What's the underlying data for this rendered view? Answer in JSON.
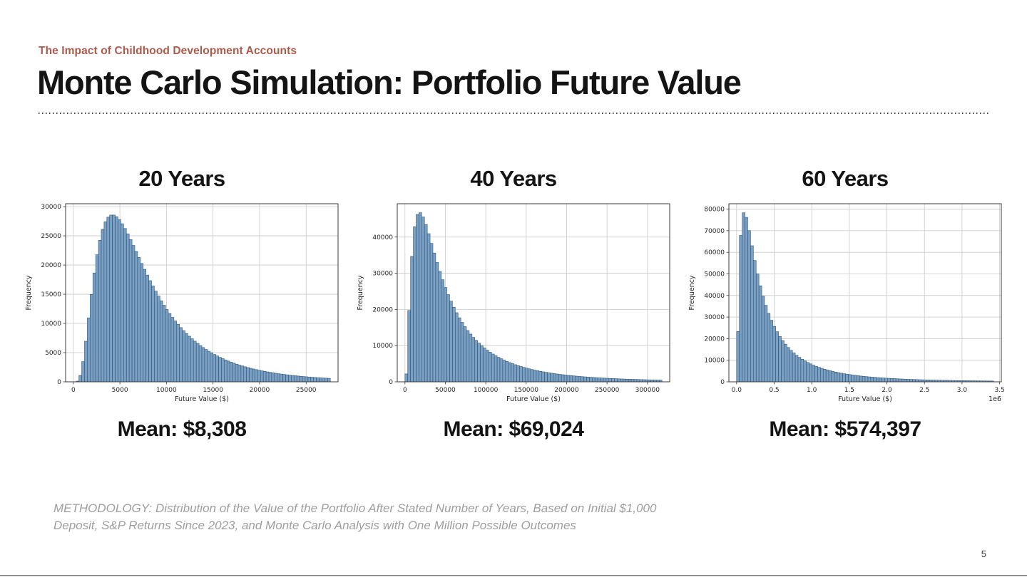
{
  "slide": {
    "eyebrow": "The Impact of Childhood Development Accounts",
    "title": "Monte Carlo Simulation: Portfolio Future Value",
    "methodology": "METHODOLOGY: Distribution of the Value of the Portfolio After Stated Number of Years, Based on Initial $1,000 Deposit, S&P Returns Since 2023, and Monte Carlo Analysis with One Million Possible Outcomes",
    "page_number": "5",
    "accent_color": "#ad5a4b"
  },
  "chart_style": {
    "bar_fill": "#7aa0c4",
    "bar_edge": "#2f5376",
    "grid_color": "#c9c9c9",
    "spine_color": "#3a3a3a",
    "tick_color": "#262626",
    "plot_bg": "#ffffff"
  },
  "chart_data": [
    {
      "type": "bar",
      "variant": "histogram",
      "title": "20 Years",
      "xlabel": "Future Value ($)",
      "ylabel": "Frequency",
      "mean_label": "Mean: $8,308",
      "mean": 8308,
      "xlim": [
        0,
        27600
      ],
      "ylim": [
        0,
        30500
      ],
      "x_tick_values": [
        0,
        5000,
        10000,
        15000,
        20000,
        25000
      ],
      "x_tick_labels": [
        "0",
        "5000",
        "10000",
        "15000",
        "20000",
        "25000"
      ],
      "y_tick_values": [
        0,
        5000,
        10000,
        15000,
        20000,
        25000,
        30000
      ],
      "y_tick_labels": [
        "0",
        "5000",
        "10000",
        "15000",
        "20000",
        "25000",
        "30000"
      ],
      "offset_label": "",
      "grid": true,
      "n_bins": 92,
      "distribution": {
        "family": "lognormal",
        "mu": 8.7977,
        "sigma": 0.6745,
        "peak_frequency": 28600,
        "mode": 4200
      },
      "anchor_points": [
        [
          1000,
          3000
        ],
        [
          4200,
          28600
        ],
        [
          10000,
          12500
        ],
        [
          15000,
          4800
        ],
        [
          20000,
          2000
        ],
        [
          25000,
          900
        ]
      ]
    },
    {
      "type": "bar",
      "variant": "histogram",
      "title": "40 Years",
      "xlabel": "Future Value ($)",
      "ylabel": "Frequency",
      "mean_label": "Mean: $69,024",
      "mean": 69024,
      "xlim": [
        0,
        318000
      ],
      "ylim": [
        0,
        49200
      ],
      "x_tick_values": [
        0,
        50000,
        100000,
        150000,
        200000,
        250000,
        300000
      ],
      "x_tick_labels": [
        "0",
        "50000",
        "100000",
        "150000",
        "200000",
        "250000",
        "300000"
      ],
      "y_tick_values": [
        0,
        10000,
        20000,
        30000,
        40000
      ],
      "y_tick_labels": [
        "0",
        "10000",
        "20000",
        "30000",
        "40000"
      ],
      "offset_label": "",
      "grid": true,
      "n_bins": 92,
      "distribution": {
        "family": "lognormal",
        "mu": 10.6942,
        "sigma": 0.9466,
        "peak_frequency": 46800,
        "mode": 18000
      },
      "anchor_points": [
        [
          2000,
          5500
        ],
        [
          18000,
          46800
        ],
        [
          50000,
          26000
        ],
        [
          100000,
          9000
        ],
        [
          200000,
          1800
        ],
        [
          300000,
          600
        ]
      ]
    },
    {
      "type": "bar",
      "variant": "histogram",
      "title": "60 Years",
      "xlabel": "Future Value ($)",
      "ylabel": "Frequency",
      "mean_label": "Mean: $574,397",
      "mean": 574397,
      "xlim": [
        0,
        3420000
      ],
      "ylim": [
        0,
        82500
      ],
      "x_tick_values": [
        0,
        500000,
        1000000,
        1500000,
        2000000,
        2500000,
        3000000,
        3500000
      ],
      "x_tick_labels": [
        "0.0",
        "0.5",
        "1.0",
        "1.5",
        "2.0",
        "2.5",
        "3.0",
        "3.5"
      ],
      "y_tick_values": [
        0,
        10000,
        20000,
        30000,
        40000,
        50000,
        60000,
        70000,
        80000
      ],
      "y_tick_labels": [
        "0",
        "10000",
        "20000",
        "30000",
        "40000",
        "50000",
        "60000",
        "70000",
        "80000"
      ],
      "offset_label": "1e6",
      "grid": true,
      "n_bins": 92,
      "distribution": {
        "family": "lognormal",
        "mu": 12.6782,
        "sigma": 1.0795,
        "peak_frequency": 78500,
        "mode": 100000
      },
      "anchor_points": [
        [
          100000,
          78500
        ],
        [
          500000,
          26000
        ],
        [
          1000000,
          8000
        ],
        [
          2000000,
          1600
        ],
        [
          3000000,
          550
        ]
      ]
    }
  ]
}
